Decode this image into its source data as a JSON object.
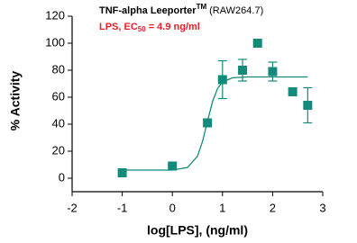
{
  "chart_data": {
    "type": "scatter",
    "title": "TNF-alpha Leeporter",
    "title_sup": "TM",
    "title_suffix": "(RAW264.7)",
    "subtitle": "LPS, EC",
    "subtitle_sub": "50",
    "subtitle_suffix": "= 4.9 ng/ml",
    "x_label": "log[LPS], (ng/ml)",
    "y_label": "% Activity",
    "xlim": [
      -2,
      3
    ],
    "ylim": [
      -10,
      120
    ],
    "xticks": [
      -2,
      -1,
      0,
      1,
      2,
      3
    ],
    "yticks": [
      0,
      20,
      40,
      60,
      80,
      100,
      120
    ],
    "color": "#138a7a",
    "series": [
      {
        "x": [
          -1,
          0,
          0.7,
          1,
          1.4,
          1.7,
          2,
          2.4,
          2.7
        ],
        "values": [
          4,
          9,
          41,
          73,
          80,
          100,
          79,
          64,
          54
        ],
        "errors": [
          null,
          null,
          null,
          14,
          8,
          null,
          7,
          null,
          13
        ]
      }
    ],
    "fit": {
      "x": [
        -1,
        -0.5,
        0,
        0.3,
        0.5,
        0.6,
        0.7,
        0.8,
        0.9,
        1,
        1.2,
        1.5,
        2,
        2.7
      ],
      "values": [
        6,
        6,
        6,
        7.9,
        16.2,
        27,
        42.1,
        56.6,
        66.3,
        71.3,
        74.4,
        75,
        75,
        75
      ]
    }
  }
}
